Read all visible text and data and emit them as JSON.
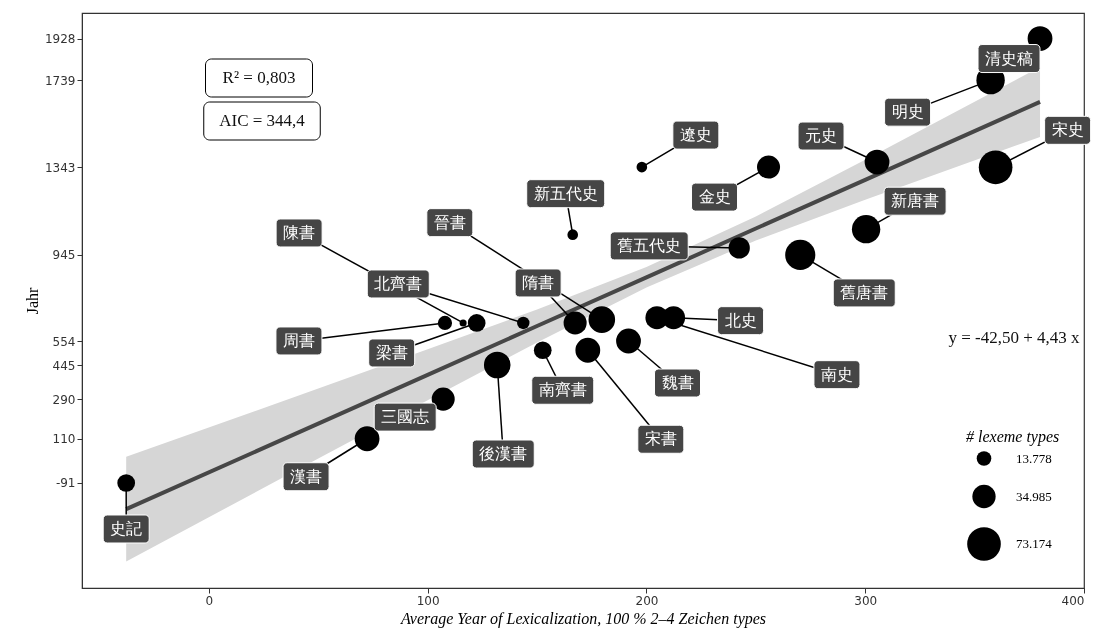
{
  "chart_data": {
    "type": "bubble",
    "xlabel": "Average Year of Lexicalization, 100 % 2–4 Zeichen types",
    "ylabel": "Jahr",
    "legend_title": "# lexeme types",
    "xlim": [
      -58,
      400
    ],
    "ylim": [
      -568,
      2044
    ],
    "xticks": [
      0,
      100,
      200,
      300,
      400
    ],
    "yticks": [
      -91,
      110,
      290,
      445,
      554,
      945,
      1343,
      1739,
      1928
    ],
    "grid": false,
    "marker": "circle",
    "size_legend": [
      {
        "value": 13778,
        "label": "13.778"
      },
      {
        "value": 34985,
        "label": "34.985"
      },
      {
        "value": 73174,
        "label": "73.174"
      }
    ],
    "series": [
      {
        "type": "bubble",
        "color": "#000000",
        "x": [
          -37.8,
          72.3,
          107.1,
          131.8,
          107.9,
          116.2,
          122.4,
          143.7,
          167.4,
          179.6,
          204.8,
          212.4,
          191.8,
          152.6,
          173.2,
          197.9,
          166.3,
          255.8,
          242.4,
          270.3,
          305.4,
          300.4,
          357.3,
          379.9,
          359.6
        ],
        "values": [
          -91,
          110,
          290,
          445,
          636,
          636,
          636,
          636,
          636,
          651,
          660,
          660,
          554,
          512,
          512,
          1344,
          1037,
          1344,
          977,
          945,
          1367,
          1062,
          1739,
          1928,
          1343
        ],
        "sizes": [
          20300,
          39700,
          34300,
          45600,
          13000,
          3240,
          20300,
          9930,
          34300,
          45600,
          34300,
          34300,
          39700,
          20300,
          39700,
          7300,
          7300,
          34300,
          29200,
          58600,
          39700,
          51900,
          51900,
          39700,
          73174
        ]
      },
      {
        "type": "line",
        "color": "#474747",
        "marker": "none",
        "x": [
          -37.8,
          50,
          100,
          150,
          200,
          250,
          300,
          379.9
        ],
        "values": [
          -210,
          179,
          400,
          622,
          843,
          1065,
          1286,
          1640
        ],
        "lower": [
          -448,
          20,
          285,
          547,
          797,
          1010,
          1196,
          1481
        ],
        "upper": [
          28,
          338,
          516,
          697,
          890,
          1120,
          1377,
          1799
        ]
      }
    ],
    "annotations": [
      {
        "text": "史記",
        "x": -37.8,
        "y": -91
      },
      {
        "text": "漢書",
        "x": 72.3,
        "y": 110
      },
      {
        "text": "三國志",
        "x": 107.1,
        "y": 290
      },
      {
        "text": "後漢書",
        "x": 131.8,
        "y": 445
      },
      {
        "text": "周書",
        "x": 107.9,
        "y": 636
      },
      {
        "text": "陳書",
        "x": 116.2,
        "y": 636
      },
      {
        "text": "梁書",
        "x": 122.4,
        "y": 636
      },
      {
        "text": "北齊書",
        "x": 143.7,
        "y": 636
      },
      {
        "text": "隋書",
        "x": 167.4,
        "y": 636
      },
      {
        "text": "晉書",
        "x": 179.6,
        "y": 651
      },
      {
        "text": "南史",
        "x": 204.8,
        "y": 660
      },
      {
        "text": "北史",
        "x": 212.4,
        "y": 660
      },
      {
        "text": "魏書",
        "x": 191.8,
        "y": 554
      },
      {
        "text": "南齊書",
        "x": 152.6,
        "y": 512
      },
      {
        "text": "宋書",
        "x": 173.2,
        "y": 512
      },
      {
        "text": "遼史",
        "x": 197.9,
        "y": 1344
      },
      {
        "text": "新五代史",
        "x": 166.3,
        "y": 1037
      },
      {
        "text": "金史",
        "x": 255.8,
        "y": 1344
      },
      {
        "text": "舊五代史",
        "x": 242.4,
        "y": 977
      },
      {
        "text": "舊唐書",
        "x": 270.3,
        "y": 945
      },
      {
        "text": "元史",
        "x": 305.4,
        "y": 1367
      },
      {
        "text": "新唐書",
        "x": 300.4,
        "y": 1062
      },
      {
        "text": "明史",
        "x": 357.3,
        "y": 1739
      },
      {
        "text": "清史稿",
        "x": 379.9,
        "y": 1928
      },
      {
        "text": "宋史",
        "x": 359.6,
        "y": 1343
      },
      "R² = 0,803",
      "AIC = 344,4",
      "y = -42,50 + 4,43 x"
    ]
  }
}
